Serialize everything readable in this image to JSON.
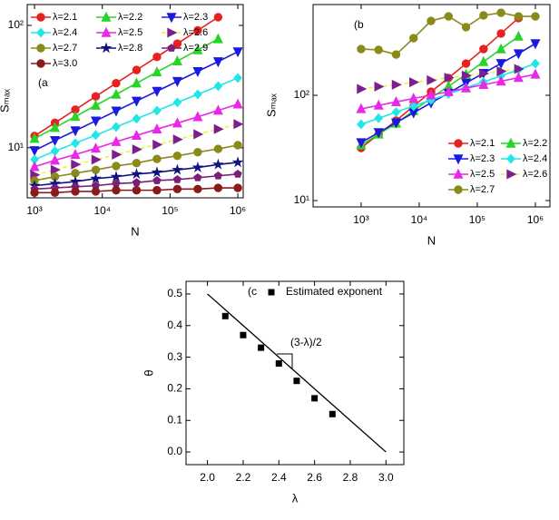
{
  "chart_data": [
    {
      "type": "line",
      "log_x": true,
      "log_y": true,
      "annotation": "(a",
      "xlabel": "N",
      "ylabel": "Sₘₐₓ",
      "x": [
        1000,
        2000,
        4000,
        8000,
        16000,
        32000,
        64000,
        128000,
        256000,
        512000,
        1000000
      ],
      "xlim": [
        780,
        1200000
      ],
      "xticks": [
        {
          "value": 1000,
          "label": "10³"
        },
        {
          "value": 10000,
          "label": "10⁴"
        },
        {
          "value": 100000,
          "label": "10⁵"
        },
        {
          "value": 1000000,
          "label": "10⁶"
        }
      ],
      "ylim": [
        3.9,
        148
      ],
      "yticks": [
        {
          "value": 10,
          "label": "10¹"
        },
        {
          "value": 100,
          "label": "10²"
        }
      ],
      "legend": "upper left",
      "legend_columns": 3,
      "series": [
        {
          "name": "λ=2.1",
          "color": "#e8211f",
          "marker": "circle",
          "values": [
            12.5,
            16.0,
            20.5,
            26.3,
            33.7,
            43.2,
            55.3,
            71.0,
            91.0,
            116.7,
            null
          ]
        },
        {
          "name": "λ=2.2",
          "color": "#28d428",
          "marker": "triangle-up",
          "values": [
            11.9,
            14.6,
            18.0,
            22.2,
            27.3,
            33.7,
            41.5,
            51.1,
            63.0,
            77.4,
            null
          ]
        },
        {
          "name": "λ=2.3",
          "color": "#1a1adf",
          "marker": "triangle-down",
          "values": [
            9.5,
            11.5,
            13.8,
            16.6,
            20.0,
            24.1,
            29.0,
            34.9,
            42.1,
            50.6,
            61.0
          ]
        },
        {
          "name": "λ=2.4",
          "color": "#22e6e6",
          "marker": "diamond",
          "values": [
            8.0,
            9.4,
            10.9,
            12.7,
            14.8,
            17.3,
            20.1,
            23.5,
            27.3,
            31.9,
            37.2
          ]
        },
        {
          "name": "λ=2.5",
          "color": "#e729e7",
          "marker": "triangle-up",
          "values": [
            7.0,
            7.9,
            8.8,
            9.9,
            11.2,
            12.6,
            14.2,
            15.9,
            17.9,
            20.2,
            22.7
          ]
        },
        {
          "name": "λ=2.6",
          "color": "#f2f23a",
          "marker_color": "#7b1f8e",
          "line_style": "dashed",
          "marker": "triangle-right",
          "values": [
            6.0,
            6.6,
            7.3,
            8.0,
            8.8,
            9.7,
            10.6,
            11.7,
            12.9,
            14.2,
            15.6
          ]
        },
        {
          "name": "λ=2.7",
          "color": "#8a8a1a",
          "marker": "circle",
          "values": [
            5.4,
            5.8,
            6.2,
            6.6,
            7.1,
            7.5,
            8.1,
            8.6,
            9.2,
            9.8,
            10.5
          ]
        },
        {
          "name": "λ=2.8",
          "color": "#101080",
          "marker": "star",
          "values": [
            4.9,
            5.1,
            5.3,
            5.6,
            5.8,
            6.1,
            6.3,
            6.6,
            6.9,
            7.3,
            7.6
          ]
        },
        {
          "name": "λ=2.9",
          "color": "#7a1f7a",
          "marker": "pentagon",
          "values": [
            4.6,
            4.7,
            4.8,
            4.9,
            5.1,
            5.2,
            5.4,
            5.5,
            5.7,
            5.9,
            6.1
          ]
        },
        {
          "name": "λ=3.0",
          "color": "#8b1a1a",
          "marker": "circle",
          "values": [
            4.3,
            4.3,
            4.4,
            4.4,
            4.5,
            4.5,
            4.5,
            4.6,
            4.6,
            4.7,
            4.7
          ]
        }
      ]
    },
    {
      "type": "line",
      "log_x": true,
      "log_y": true,
      "annotation": "(b",
      "xlabel": "N",
      "ylabel": "Sₘₐₓ",
      "x": [
        1000,
        2000,
        4000,
        8000,
        16000,
        32000,
        64000,
        128000,
        256000,
        512000,
        1000000
      ],
      "xlim": [
        149,
        1780000
      ],
      "xticks": [
        {
          "value": 1000,
          "label": "10³"
        },
        {
          "value": 10000,
          "label": "10⁴"
        },
        {
          "value": 100000,
          "label": "10⁵"
        },
        {
          "value": 1000000,
          "label": "10⁶"
        }
      ],
      "ylim": [
        8.7,
        728
      ],
      "yticks": [
        {
          "value": 10,
          "label": "10¹"
        },
        {
          "value": 100,
          "label": "10²"
        }
      ],
      "legend": "lower right",
      "legend_columns": 2,
      "series": [
        {
          "name": "λ=2.1",
          "color": "#e8211f",
          "marker": "circle",
          "values": [
            31.6,
            42.6,
            57.4,
            78.9,
            108,
            146,
            200,
            275,
            386,
            541,
            null
          ]
        },
        {
          "name": "λ=2.2",
          "color": "#28d428",
          "marker": "triangle-up",
          "values": [
            33.6,
            42.6,
            54.1,
            71.3,
            94.2,
            122,
            158,
            208,
            275,
            363,
            null
          ]
        },
        {
          "name": "λ=2.3",
          "color": "#1a1adf",
          "marker": "triangle-down",
          "values": [
            35.6,
            44.3,
            54.9,
            68.2,
            84.7,
            105,
            131,
            162,
            201,
            249,
            310
          ]
        },
        {
          "name": "λ=2.4",
          "color": "#22e6e6",
          "marker": "diamond",
          "values": [
            53.0,
            60.5,
            69.2,
            78.9,
            90.2,
            103,
            118,
            134,
            153,
            175,
            200
          ]
        },
        {
          "name": "λ=2.5",
          "color": "#e729e7",
          "marker": "triangle-up",
          "values": [
            74.3,
            80.2,
            86.5,
            93.3,
            100.5,
            108,
            117,
            126,
            136,
            147,
            158
          ]
        },
        {
          "name": "λ=2.6",
          "color": "#f2f23a",
          "marker_color": "#7b1f8e",
          "line_style": "dashed",
          "marker": "triangle-right",
          "values": [
            115,
            121,
            126,
            133,
            139,
            147,
            154,
            161,
            169,
            178,
            null
          ]
        },
        {
          "name": "λ=2.7",
          "color": "#8a8a1a",
          "marker": "circle",
          "values": [
            275,
            270,
            244,
            349,
            509,
            562,
            444,
            574,
            608,
            562,
            562
          ]
        }
      ]
    },
    {
      "type": "scatter",
      "log_x": false,
      "log_y": false,
      "annotation": "(c",
      "xlabel": "λ",
      "ylabel": "θ",
      "xlim": [
        1.88,
        3.1
      ],
      "xticks": [
        {
          "value": 2,
          "label": "2.0"
        },
        2.2,
        2.4,
        2.6,
        2.8,
        {
          "value": 3,
          "label": "3.0"
        }
      ],
      "ylim": [
        -0.04,
        0.54
      ],
      "yticks": [
        {
          "value": 0,
          "label": "0.0"
        },
        0.1,
        0.2,
        0.3,
        0.4,
        0.5
      ],
      "legend": "upper right",
      "legend_columns": 1,
      "series": [
        {
          "name": "Estimated exponent",
          "color": "#000000",
          "marker": "square",
          "x": [
            2.1,
            2.2,
            2.3,
            2.4,
            2.5,
            2.6,
            2.7
          ],
          "values": [
            0.43,
            0.37,
            0.33,
            0.28,
            0.225,
            0.17,
            0.12
          ]
        }
      ],
      "fit_line": {
        "label": "(3-λ)/2",
        "color": "#000000",
        "x": [
          2.0,
          3.0
        ],
        "values": [
          0.5,
          0.0
        ]
      }
    }
  ]
}
